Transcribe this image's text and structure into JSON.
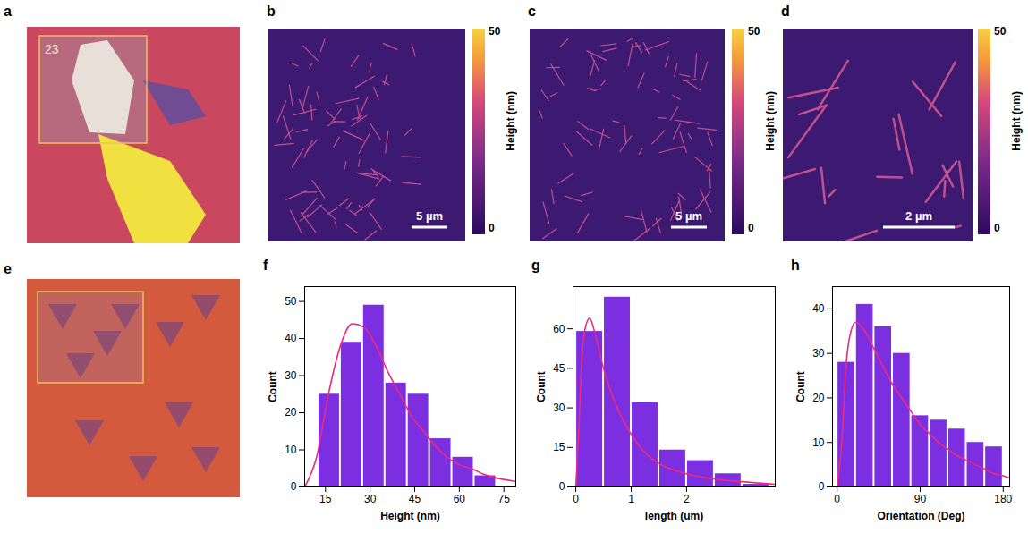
{
  "images": [
    {
      "panel": "a",
      "type": "optical",
      "texts": [
        "23"
      ]
    },
    {
      "panel": "b",
      "type": "afm",
      "scale_bar": "5 µm",
      "colorbar": {
        "label": "Height (nm)",
        "range": [
          0,
          50
        ],
        "ticks": [
          0,
          50
        ]
      }
    },
    {
      "panel": "c",
      "type": "afm",
      "scale_bar": "5 µm",
      "colorbar": {
        "label": "Height (nm)",
        "range": [
          0,
          50
        ],
        "ticks": [
          0,
          50
        ]
      }
    },
    {
      "panel": "d",
      "type": "afm",
      "scale_bar": "2 µm",
      "colorbar": {
        "label": "Height (nm)",
        "range": [
          0,
          50
        ],
        "ticks": [
          0,
          50
        ]
      }
    },
    {
      "panel": "e",
      "type": "optical",
      "texts": []
    }
  ],
  "chart_data": [
    {
      "panel": "f",
      "type": "histogram",
      "xlabel": "Height (nm)",
      "ylabel": "Count",
      "color": "#7b2fe0",
      "bins": [
        12.5,
        20,
        27.5,
        35,
        42.5,
        50,
        57.5,
        65,
        72.5
      ],
      "values": [
        25,
        39,
        49,
        28,
        25,
        13,
        8,
        3
      ],
      "xlim": [
        8,
        79
      ],
      "xticks": [
        15,
        30,
        45,
        60,
        75
      ],
      "ylim": [
        0,
        54
      ],
      "yticks": [
        0,
        10,
        20,
        30,
        40,
        50
      ],
      "series": [
        {
          "type": "line",
          "color": "#ee2a7b",
          "x": [
            8,
            12,
            16,
            20,
            24,
            28,
            32,
            36,
            40,
            44,
            48,
            52,
            56,
            60,
            64,
            68,
            72,
            79
          ],
          "values": [
            0,
            8,
            25,
            38,
            44,
            43,
            38,
            31,
            25,
            19,
            15,
            11,
            8,
            6,
            5,
            3.5,
            2.5,
            1.5
          ]
        }
      ]
    },
    {
      "panel": "g",
      "type": "histogram",
      "xlabel": "length (um)",
      "ylabel": "Count",
      "color": "#7b2fe0",
      "bins": [
        0,
        0.5,
        1,
        1.5,
        2,
        2.5,
        3,
        3.5
      ],
      "values": [
        59,
        72,
        32,
        14,
        10,
        5,
        1
      ],
      "xlim": [
        -0.05,
        3.6
      ],
      "xticks": [
        0,
        1,
        2
      ],
      "ylim": [
        0,
        76
      ],
      "yticks": [
        0,
        15,
        30,
        45,
        60
      ],
      "series": [
        {
          "type": "line",
          "color": "#ee2a7b",
          "x": [
            0,
            0.05,
            0.1,
            0.15,
            0.25,
            0.35,
            0.5,
            0.75,
            1,
            1.25,
            1.5,
            2,
            2.5,
            3,
            3.6
          ],
          "values": [
            0,
            20,
            45,
            58,
            64,
            58,
            45,
            30,
            20,
            13,
            9,
            5,
            3,
            2,
            1
          ]
        }
      ]
    },
    {
      "panel": "h",
      "type": "histogram",
      "xlabel": "Orientation (Deg)",
      "ylabel": "Count",
      "color": "#7b2fe0",
      "bins": [
        0,
        20,
        40,
        60,
        80,
        100,
        120,
        140,
        160,
        180
      ],
      "values": [
        28,
        41,
        36,
        30,
        16,
        15,
        13,
        10,
        9
      ],
      "xlim": [
        -5,
        187
      ],
      "xticks": [
        0,
        90,
        180
      ],
      "ylim": [
        0,
        45
      ],
      "yticks": [
        0,
        10,
        20,
        30,
        40
      ],
      "series": [
        {
          "type": "line",
          "color": "#ee2a7b",
          "x": [
            0,
            5,
            10,
            15,
            20,
            30,
            40,
            50,
            60,
            70,
            80,
            90,
            100,
            110,
            120,
            130,
            140,
            150,
            160,
            170,
            180,
            187
          ],
          "values": [
            0,
            10,
            28,
            35,
            37,
            35,
            31,
            27,
            23,
            20,
            17,
            14,
            12,
            10,
            8.5,
            7,
            6,
            5,
            4,
            3,
            2.5,
            2
          ]
        }
      ]
    }
  ]
}
